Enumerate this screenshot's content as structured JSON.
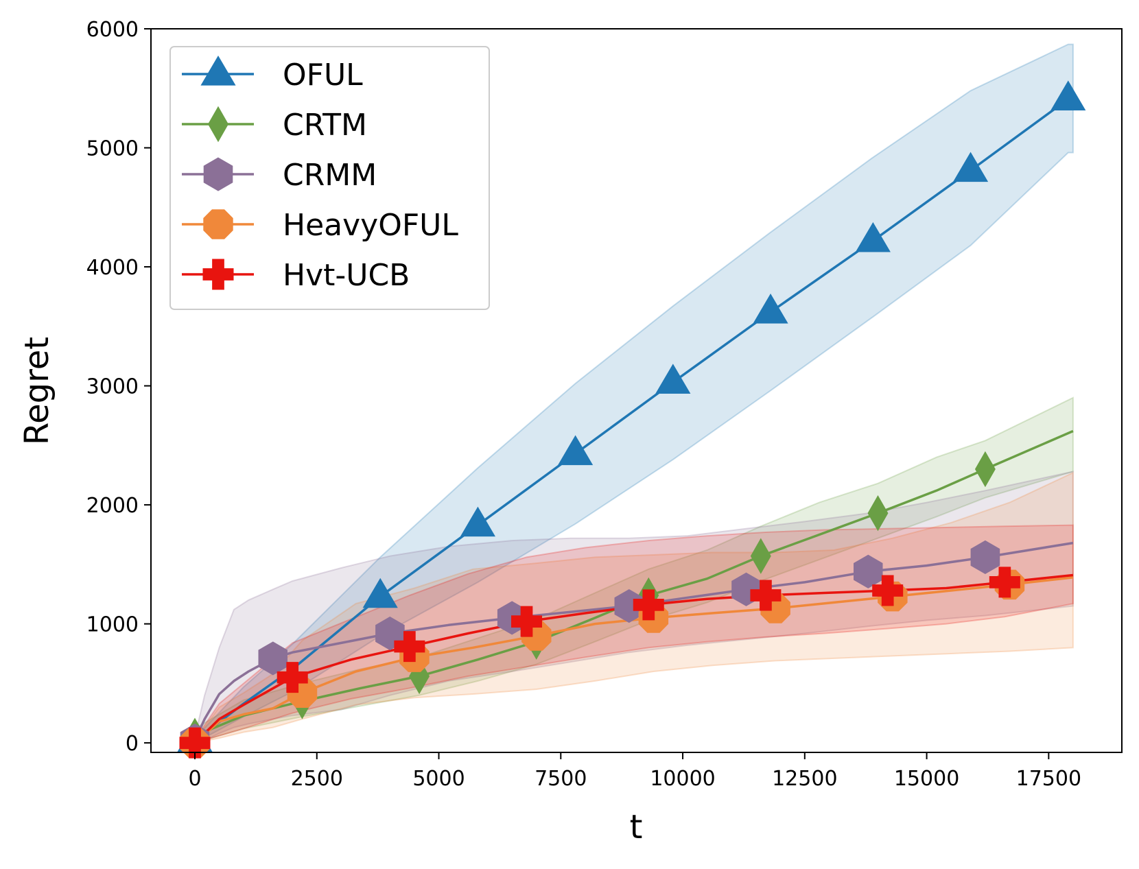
{
  "chart_data": {
    "type": "line",
    "title": "",
    "xlabel": "t",
    "ylabel": "Regret",
    "xlim": [
      -900,
      19000
    ],
    "ylim": [
      -80,
      6000
    ],
    "xticks": [
      0,
      2500,
      5000,
      7500,
      10000,
      12500,
      15000,
      17500
    ],
    "xtick_labels": [
      "0",
      "2500",
      "5000",
      "7500",
      "10000",
      "12500",
      "15000",
      "17500"
    ],
    "yticks": [
      0,
      1000,
      2000,
      3000,
      4000,
      5000,
      6000
    ],
    "ytick_labels": [
      "0",
      "1000",
      "2000",
      "3000",
      "4000",
      "5000",
      "6000"
    ],
    "grid": false,
    "legend_position": "top-left",
    "series": [
      {
        "name": "OFUL",
        "color": "#1f77b4",
        "marker": "triangle",
        "x": [
          0,
          1000,
          2000,
          3800,
          5800,
          7800,
          9800,
          11800,
          13900,
          15900,
          17900,
          18000
        ],
        "y": [
          20,
          330,
          620,
          1230,
          1830,
          2430,
          3030,
          3620,
          4220,
          4810,
          5410,
          5430
        ],
        "band_lower": [
          0,
          220,
          430,
          900,
          1350,
          1840,
          2380,
          2960,
          3580,
          4180,
          4960,
          4960
        ],
        "band_upper": [
          40,
          470,
          830,
          1560,
          2310,
          3020,
          3670,
          4290,
          4920,
          5480,
          5870,
          5870
        ],
        "marker_x": [
          0,
          3800,
          5800,
          7800,
          9800,
          11800,
          13900,
          15900,
          17900
        ],
        "marker_y": [
          20,
          1230,
          1830,
          2430,
          3030,
          3620,
          4220,
          4810,
          5410
        ]
      },
      {
        "name": "CRTM",
        "color": "#6a9f45",
        "marker": "diamond",
        "x": [
          0,
          1000,
          2200,
          3400,
          4600,
          5800,
          7000,
          8200,
          9300,
          10500,
          11600,
          12800,
          14000,
          15200,
          16200,
          18000
        ],
        "y": [
          60,
          230,
          350,
          460,
          560,
          700,
          850,
          1050,
          1240,
          1380,
          1570,
          1750,
          1930,
          2120,
          2300,
          2620
        ],
        "band_lower": [
          0,
          120,
          220,
          310,
          400,
          520,
          660,
          850,
          1030,
          1180,
          1360,
          1540,
          1720,
          1900,
          2060,
          2280
        ],
        "band_upper": [
          120,
          360,
          500,
          620,
          720,
          880,
          1040,
          1260,
          1460,
          1620,
          1820,
          2020,
          2180,
          2400,
          2540,
          2900
        ],
        "marker_x": [
          0,
          2200,
          4600,
          7000,
          9300,
          11600,
          14000,
          16200
        ],
        "marker_y": [
          60,
          350,
          560,
          850,
          1240,
          1570,
          1930,
          2300
        ]
      },
      {
        "name": "CRMM",
        "color": "#8b7097",
        "marker": "hexagon",
        "x": [
          0,
          200,
          500,
          800,
          1100,
          1600,
          2000,
          3000,
          4000,
          5200,
          6500,
          7700,
          8900,
          10100,
          11300,
          12500,
          13800,
          15000,
          16200,
          18000
        ],
        "y": [
          20,
          200,
          410,
          520,
          600,
          710,
          760,
          840,
          920,
          990,
          1050,
          1100,
          1150,
          1220,
          1290,
          1350,
          1440,
          1490,
          1560,
          1680
        ],
        "band_lower": [
          0,
          20,
          80,
          130,
          160,
          200,
          230,
          280,
          400,
          520,
          600,
          680,
          760,
          820,
          870,
          920,
          980,
          1030,
          1070,
          1150
        ],
        "band_upper": [
          50,
          400,
          800,
          1120,
          1200,
          1290,
          1360,
          1470,
          1570,
          1650,
          1700,
          1720,
          1720,
          1740,
          1800,
          1860,
          1930,
          2020,
          2120,
          2280
        ],
        "marker_x": [
          0,
          1600,
          4000,
          6500,
          8900,
          11300,
          13800,
          16200
        ],
        "marker_y": [
          20,
          710,
          920,
          1050,
          1150,
          1290,
          1440,
          1560
        ]
      },
      {
        "name": "HeavyOFUL",
        "color": "#f0883a",
        "marker": "octagon",
        "x": [
          0,
          500,
          1000,
          1600,
          2200,
          3300,
          4500,
          5700,
          7000,
          8200,
          9400,
          10600,
          11900,
          13100,
          14300,
          15500,
          16700,
          18000
        ],
        "y": [
          0,
          180,
          240,
          290,
          420,
          600,
          720,
          800,
          900,
          1000,
          1050,
          1090,
          1130,
          1180,
          1230,
          1280,
          1330,
          1390
        ],
        "band_lower": [
          0,
          40,
          90,
          130,
          200,
          320,
          380,
          410,
          450,
          520,
          600,
          650,
          690,
          710,
          730,
          750,
          770,
          800
        ],
        "band_upper": [
          20,
          300,
          420,
          580,
          860,
          1170,
          1300,
          1460,
          1510,
          1560,
          1580,
          1600,
          1600,
          1620,
          1720,
          1850,
          2020,
          2270
        ],
        "marker_x": [
          0,
          2200,
          4500,
          7000,
          9400,
          11900,
          14300,
          16700
        ],
        "marker_y": [
          0,
          420,
          720,
          900,
          1050,
          1130,
          1230,
          1330
        ]
      },
      {
        "name": "Hvt-UCB",
        "color": "#e8140f",
        "marker": "plus",
        "x": [
          0,
          500,
          1000,
          2000,
          3200,
          4400,
          5600,
          6800,
          8000,
          9300,
          10500,
          11700,
          12900,
          14200,
          15400,
          16600,
          18000
        ],
        "y": [
          0,
          200,
          320,
          550,
          700,
          810,
          920,
          1020,
          1090,
          1160,
          1210,
          1240,
          1260,
          1280,
          1300,
          1350,
          1410
        ],
        "band_lower": [
          0,
          60,
          120,
          250,
          370,
          460,
          560,
          640,
          720,
          800,
          850,
          890,
          920,
          960,
          1000,
          1060,
          1170
        ],
        "band_upper": [
          30,
          330,
          500,
          840,
          1040,
          1240,
          1420,
          1560,
          1640,
          1700,
          1740,
          1770,
          1790,
          1800,
          1810,
          1820,
          1830
        ],
        "marker_x": [
          0,
          2000,
          4400,
          6800,
          9300,
          11700,
          14200,
          16600
        ],
        "marker_y": [
          0,
          550,
          810,
          1020,
          1160,
          1240,
          1280,
          1350
        ]
      }
    ]
  }
}
